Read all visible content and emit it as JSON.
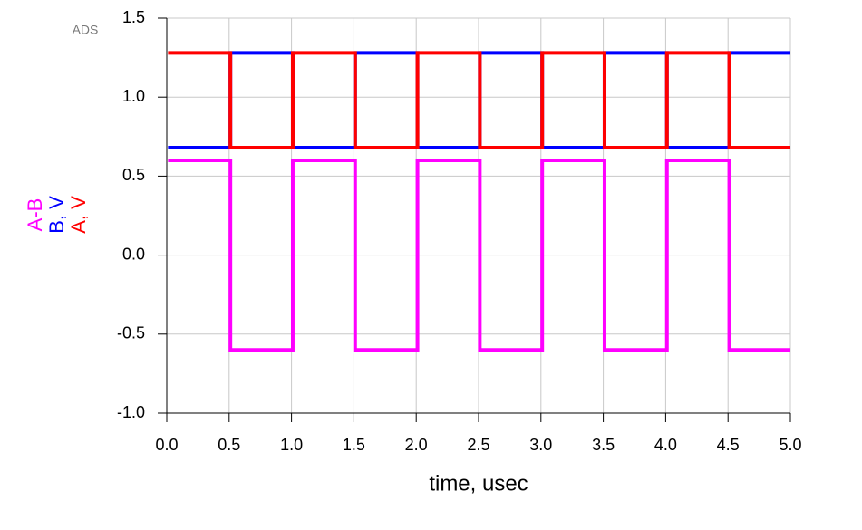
{
  "chart_data": {
    "type": "line",
    "watermark": "ADS",
    "xlabel": "time, usec",
    "x": [
      0.01,
      0.51,
      0.51,
      1.01,
      1.01,
      1.51,
      1.51,
      2.01,
      2.01,
      2.51,
      2.51,
      3.01,
      3.01,
      3.51,
      3.51,
      4.01,
      4.01,
      4.51,
      4.51,
      5.0
    ],
    "series": [
      {
        "name": "A-B",
        "color": "#ff00ff",
        "values": [
          0.6,
          0.6,
          -0.6,
          -0.6,
          0.6,
          0.6,
          -0.6,
          -0.6,
          0.6,
          0.6,
          -0.6,
          -0.6,
          0.6,
          0.6,
          -0.6,
          -0.6,
          0.6,
          0.6,
          -0.6,
          -0.6
        ]
      },
      {
        "name": "B, V",
        "color": "#0000ff",
        "values": [
          0.68,
          0.68,
          1.28,
          1.28,
          0.68,
          0.68,
          1.28,
          1.28,
          0.68,
          0.68,
          1.28,
          1.28,
          0.68,
          0.68,
          1.28,
          1.28,
          0.68,
          0.68,
          1.28,
          1.28
        ]
      },
      {
        "name": "A, V",
        "color": "#ff0000",
        "values": [
          1.28,
          1.28,
          0.68,
          0.68,
          1.28,
          1.28,
          0.68,
          0.68,
          1.28,
          1.28,
          0.68,
          0.68,
          1.28,
          1.28,
          0.68,
          0.68,
          1.28,
          1.28,
          0.68,
          0.68
        ]
      }
    ],
    "xlim": [
      0,
      5
    ],
    "ylim": [
      -1.0,
      1.5
    ],
    "xticks": [
      {
        "value": 0,
        "label": "0.0"
      },
      {
        "value": 0.5,
        "label": "0.5"
      },
      {
        "value": 1,
        "label": "1.0"
      },
      {
        "value": 1.5,
        "label": "1.5"
      },
      {
        "value": 2,
        "label": "2.0"
      },
      {
        "value": 2.5,
        "label": "2.5"
      },
      {
        "value": 3,
        "label": "3.0"
      },
      {
        "value": 3.5,
        "label": "3.5"
      },
      {
        "value": 4,
        "label": "4.0"
      },
      {
        "value": 4.5,
        "label": "4.5"
      },
      {
        "value": 5,
        "label": "5.0"
      }
    ],
    "yticks": [
      {
        "value": -1,
        "label": "-1.0"
      },
      -0.5,
      {
        "value": 0,
        "label": "0.0"
      },
      0.5,
      {
        "value": 1,
        "label": "1.0"
      },
      1.5
    ],
    "grid": true
  }
}
